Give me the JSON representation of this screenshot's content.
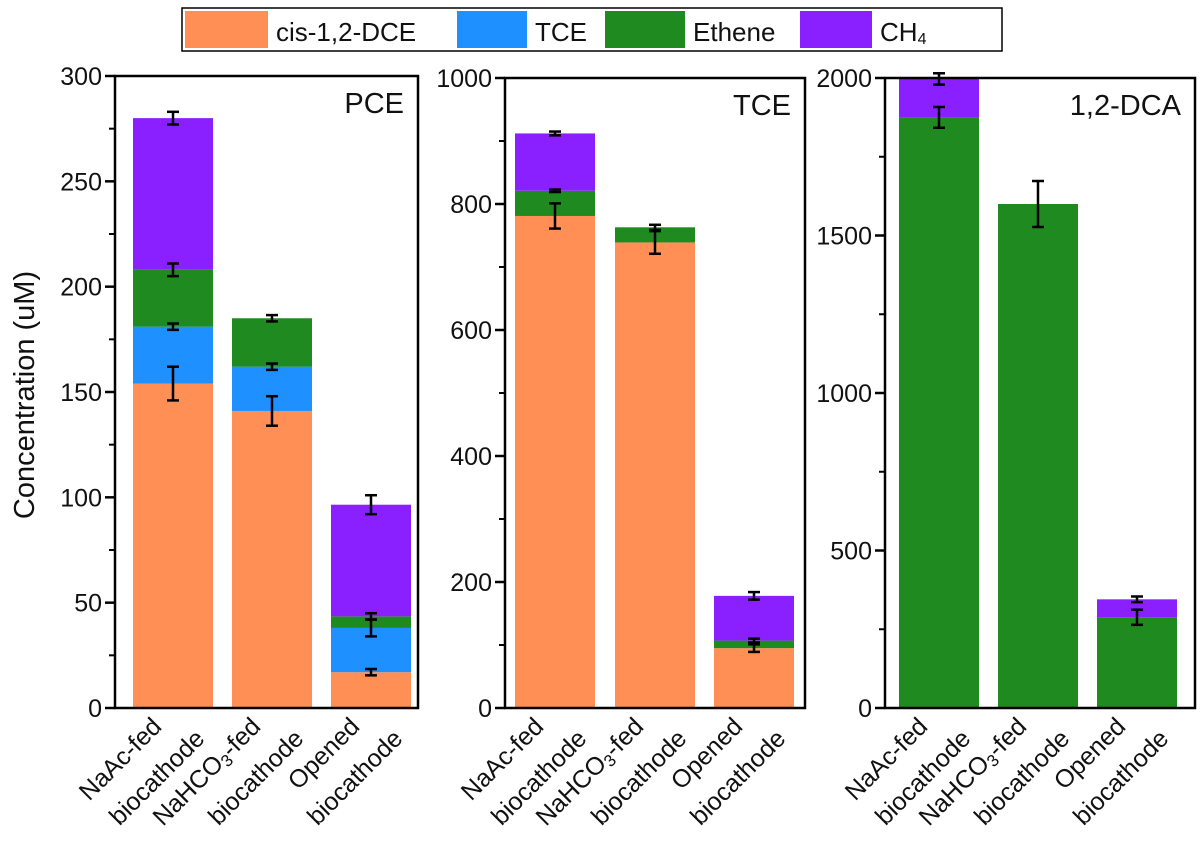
{
  "colors": {
    "cis-1,2-DCE": "#FF8F54",
    "TCE": "#1F90FF",
    "Ethene": "#1F8A1F",
    "CH4": "#8A1FFF",
    "error": "#000000"
  },
  "legend": {
    "items": [
      {
        "key": "cis-1,2-DCE",
        "text": "cis-1,2-DCE",
        "sub": ""
      },
      {
        "key": "TCE",
        "text": "TCE",
        "sub": ""
      },
      {
        "key": "Ethene",
        "text": "Ethene",
        "sub": ""
      },
      {
        "key": "CH4",
        "text": "CH",
        "sub": "4"
      }
    ]
  },
  "ylabel": "Concentration (uM)",
  "chart_data": [
    {
      "type": "bar",
      "stacked": true,
      "title": "PCE",
      "categories": [
        {
          "line1": "NaAc-fed",
          "line1_sub": "",
          "line1_after": "",
          "line2": "biocathode"
        },
        {
          "line1": "NaHCO",
          "line1_sub": "3",
          "line1_after": "-fed",
          "line2": "biocathode"
        },
        {
          "line1": "Opened",
          "line1_sub": "",
          "line1_after": "",
          "line2": "biocathode"
        }
      ],
      "ylim": [
        0,
        300
      ],
      "yticks": [
        0,
        50,
        100,
        150,
        200,
        250,
        300
      ],
      "series": [
        {
          "name": "cis-1,2-DCE",
          "values": [
            154,
            141,
            17
          ],
          "errors": [
            8,
            7,
            1.5
          ]
        },
        {
          "name": "TCE",
          "values": [
            27,
            21,
            21
          ],
          "errors": [
            1.5,
            1.5,
            4
          ]
        },
        {
          "name": "Ethene",
          "values": [
            27,
            23,
            5.5
          ],
          "errors": [
            3,
            1.5,
            1.5
          ]
        },
        {
          "name": "CH4",
          "values": [
            72,
            0,
            53
          ],
          "errors": [
            3,
            0,
            4.5
          ]
        }
      ]
    },
    {
      "type": "bar",
      "stacked": true,
      "title": "TCE",
      "categories": [
        {
          "line1": "NaAc-fed",
          "line1_sub": "",
          "line1_after": "",
          "line2": "biocathode"
        },
        {
          "line1": "NaHCO",
          "line1_sub": "3",
          "line1_after": "-fed",
          "line2": "biocathode"
        },
        {
          "line1": "Opened",
          "line1_sub": "",
          "line1_after": "",
          "line2": "biocathode"
        }
      ],
      "ylim": [
        0,
        1000
      ],
      "yticks": [
        0,
        200,
        400,
        600,
        800,
        1000
      ],
      "series": [
        {
          "name": "cis-1,2-DCE",
          "values": [
            781,
            739,
            95
          ],
          "errors": [
            20,
            18,
            6
          ]
        },
        {
          "name": "TCE",
          "values": [
            0,
            0,
            0
          ],
          "errors": [
            0,
            0,
            0
          ]
        },
        {
          "name": "Ethene",
          "values": [
            40,
            24,
            12
          ],
          "errors": [
            2,
            4,
            3
          ]
        },
        {
          "name": "CH4",
          "values": [
            91,
            0,
            71
          ],
          "errors": [
            3,
            0,
            6
          ]
        }
      ]
    },
    {
      "type": "bar",
      "stacked": true,
      "title": "1,2-DCA",
      "categories": [
        {
          "line1": "NaAc-fed",
          "line1_sub": "",
          "line1_after": "",
          "line2": "biocathode"
        },
        {
          "line1": "NaHCO",
          "line1_sub": "3",
          "line1_after": "-fed",
          "line2": "biocathode"
        },
        {
          "line1": "Opened",
          "line1_sub": "",
          "line1_after": "",
          "line2": "biocathode"
        }
      ],
      "ylim": [
        0,
        2000
      ],
      "yticks": [
        0,
        500,
        1000,
        1500,
        2000
      ],
      "series": [
        {
          "name": "cis-1,2-DCE",
          "values": [
            0,
            0,
            0
          ],
          "errors": [
            0,
            0,
            0
          ]
        },
        {
          "name": "TCE",
          "values": [
            0,
            0,
            0
          ],
          "errors": [
            0,
            0,
            0
          ]
        },
        {
          "name": "Ethene",
          "values": [
            1875,
            1600,
            288
          ],
          "errors": [
            33,
            73,
            24
          ]
        },
        {
          "name": "CH4",
          "values": [
            122,
            0,
            57
          ],
          "errors": [
            18,
            0,
            9
          ]
        }
      ]
    }
  ]
}
